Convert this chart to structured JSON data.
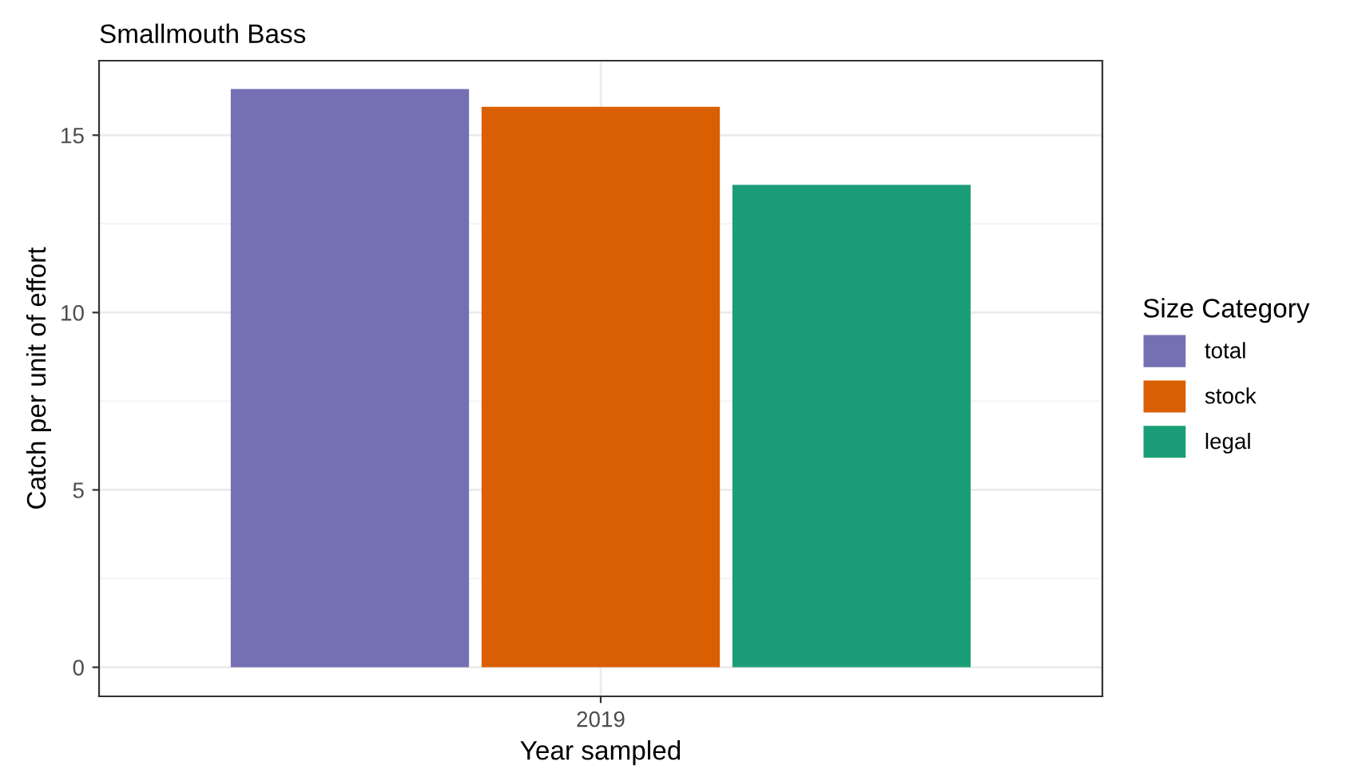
{
  "chart_data": {
    "type": "bar",
    "title": "Smallmouth Bass",
    "xlabel": "Year sampled",
    "ylabel": "Catch per unit of effort",
    "legend_title": "Size Category",
    "categories": [
      "2019"
    ],
    "series": [
      {
        "name": "total",
        "color": "#7570b3",
        "values": [
          16.3
        ]
      },
      {
        "name": "stock",
        "color": "#d95f02",
        "values": [
          15.8
        ]
      },
      {
        "name": "legal",
        "color": "#1b9e77",
        "values": [
          13.6
        ]
      }
    ],
    "ylim": [
      -0.82,
      17.1
    ],
    "yticks": [
      0,
      5,
      10,
      15
    ],
    "grid": true,
    "legend": "right"
  }
}
